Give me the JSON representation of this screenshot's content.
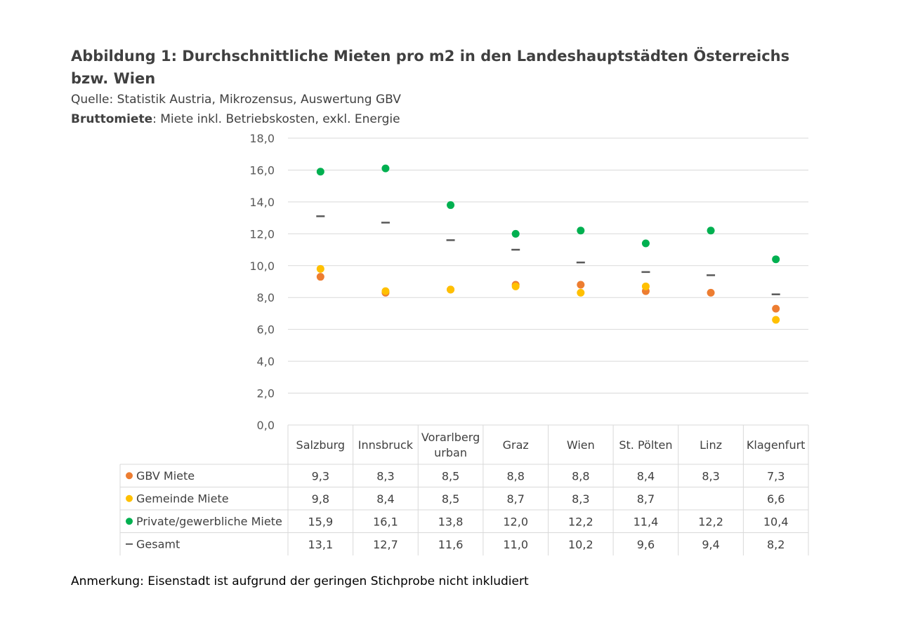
{
  "header": {
    "title": "Abbildung 1: Durchschnittliche Mieten pro m2 in den Landeshauptstädten Österreichs bzw. Wien",
    "source": "Quelle: Statistik Austria, Mikrozensus, Auswertung GBV",
    "subtitle_bold": "Bruttomiete",
    "subtitle_rest": ": Miete inkl. Betriebskosten, exkl. Energie"
  },
  "footer": {
    "note": "Anmerkung: Eisenstadt ist aufgrund der geringen Stichprobe nicht inkludiert"
  },
  "chart_data": {
    "type": "scatter",
    "title": "",
    "xlabel": "",
    "ylabel": "",
    "ylim": [
      0,
      18
    ],
    "ytick_step": 2,
    "ytick_labels": [
      "0,0",
      "2,0",
      "4,0",
      "6,0",
      "8,0",
      "10,0",
      "12,0",
      "14,0",
      "16,0",
      "18,0"
    ],
    "grid": true,
    "legend": "data-table-below",
    "categories": [
      [
        "Salzburg"
      ],
      [
        "Innsbruck"
      ],
      [
        "Vorarlberg",
        "urban"
      ],
      [
        "Graz"
      ],
      [
        "Wien"
      ],
      [
        "St. Pölten"
      ],
      [
        "Linz"
      ],
      [
        "Klagenfurt"
      ]
    ],
    "series": [
      {
        "name": "GBV Miete",
        "marker": "dot",
        "color": "#ED7D31",
        "values": [
          9.3,
          8.3,
          8.5,
          8.8,
          8.8,
          8.4,
          8.3,
          7.3
        ],
        "labels": [
          "9,3",
          "8,3",
          "8,5",
          "8,8",
          "8,8",
          "8,4",
          "8,3",
          "7,3"
        ]
      },
      {
        "name": "Gemeinde Miete",
        "marker": "dot",
        "color": "#FFC000",
        "values": [
          9.8,
          8.4,
          8.5,
          8.7,
          8.3,
          8.7,
          null,
          6.6
        ],
        "labels": [
          "9,8",
          "8,4",
          "8,5",
          "8,7",
          "8,3",
          "8,7",
          "",
          "6,6"
        ]
      },
      {
        "name": "Private/gewerbliche Miete",
        "marker": "dot",
        "color": "#00B050",
        "values": [
          15.9,
          16.1,
          13.8,
          12.0,
          12.2,
          11.4,
          12.2,
          10.4
        ],
        "labels": [
          "15,9",
          "16,1",
          "13,8",
          "12,0",
          "12,2",
          "11,4",
          "12,2",
          "10,4"
        ]
      },
      {
        "name": "Gesamt",
        "marker": "dash",
        "color": "#595959",
        "values": [
          13.1,
          12.7,
          11.6,
          11.0,
          10.2,
          9.6,
          9.4,
          8.2
        ],
        "labels": [
          "13,1",
          "12,7",
          "11,6",
          "11,0",
          "10,2",
          "9,6",
          "9,4",
          "8,2"
        ]
      }
    ]
  }
}
